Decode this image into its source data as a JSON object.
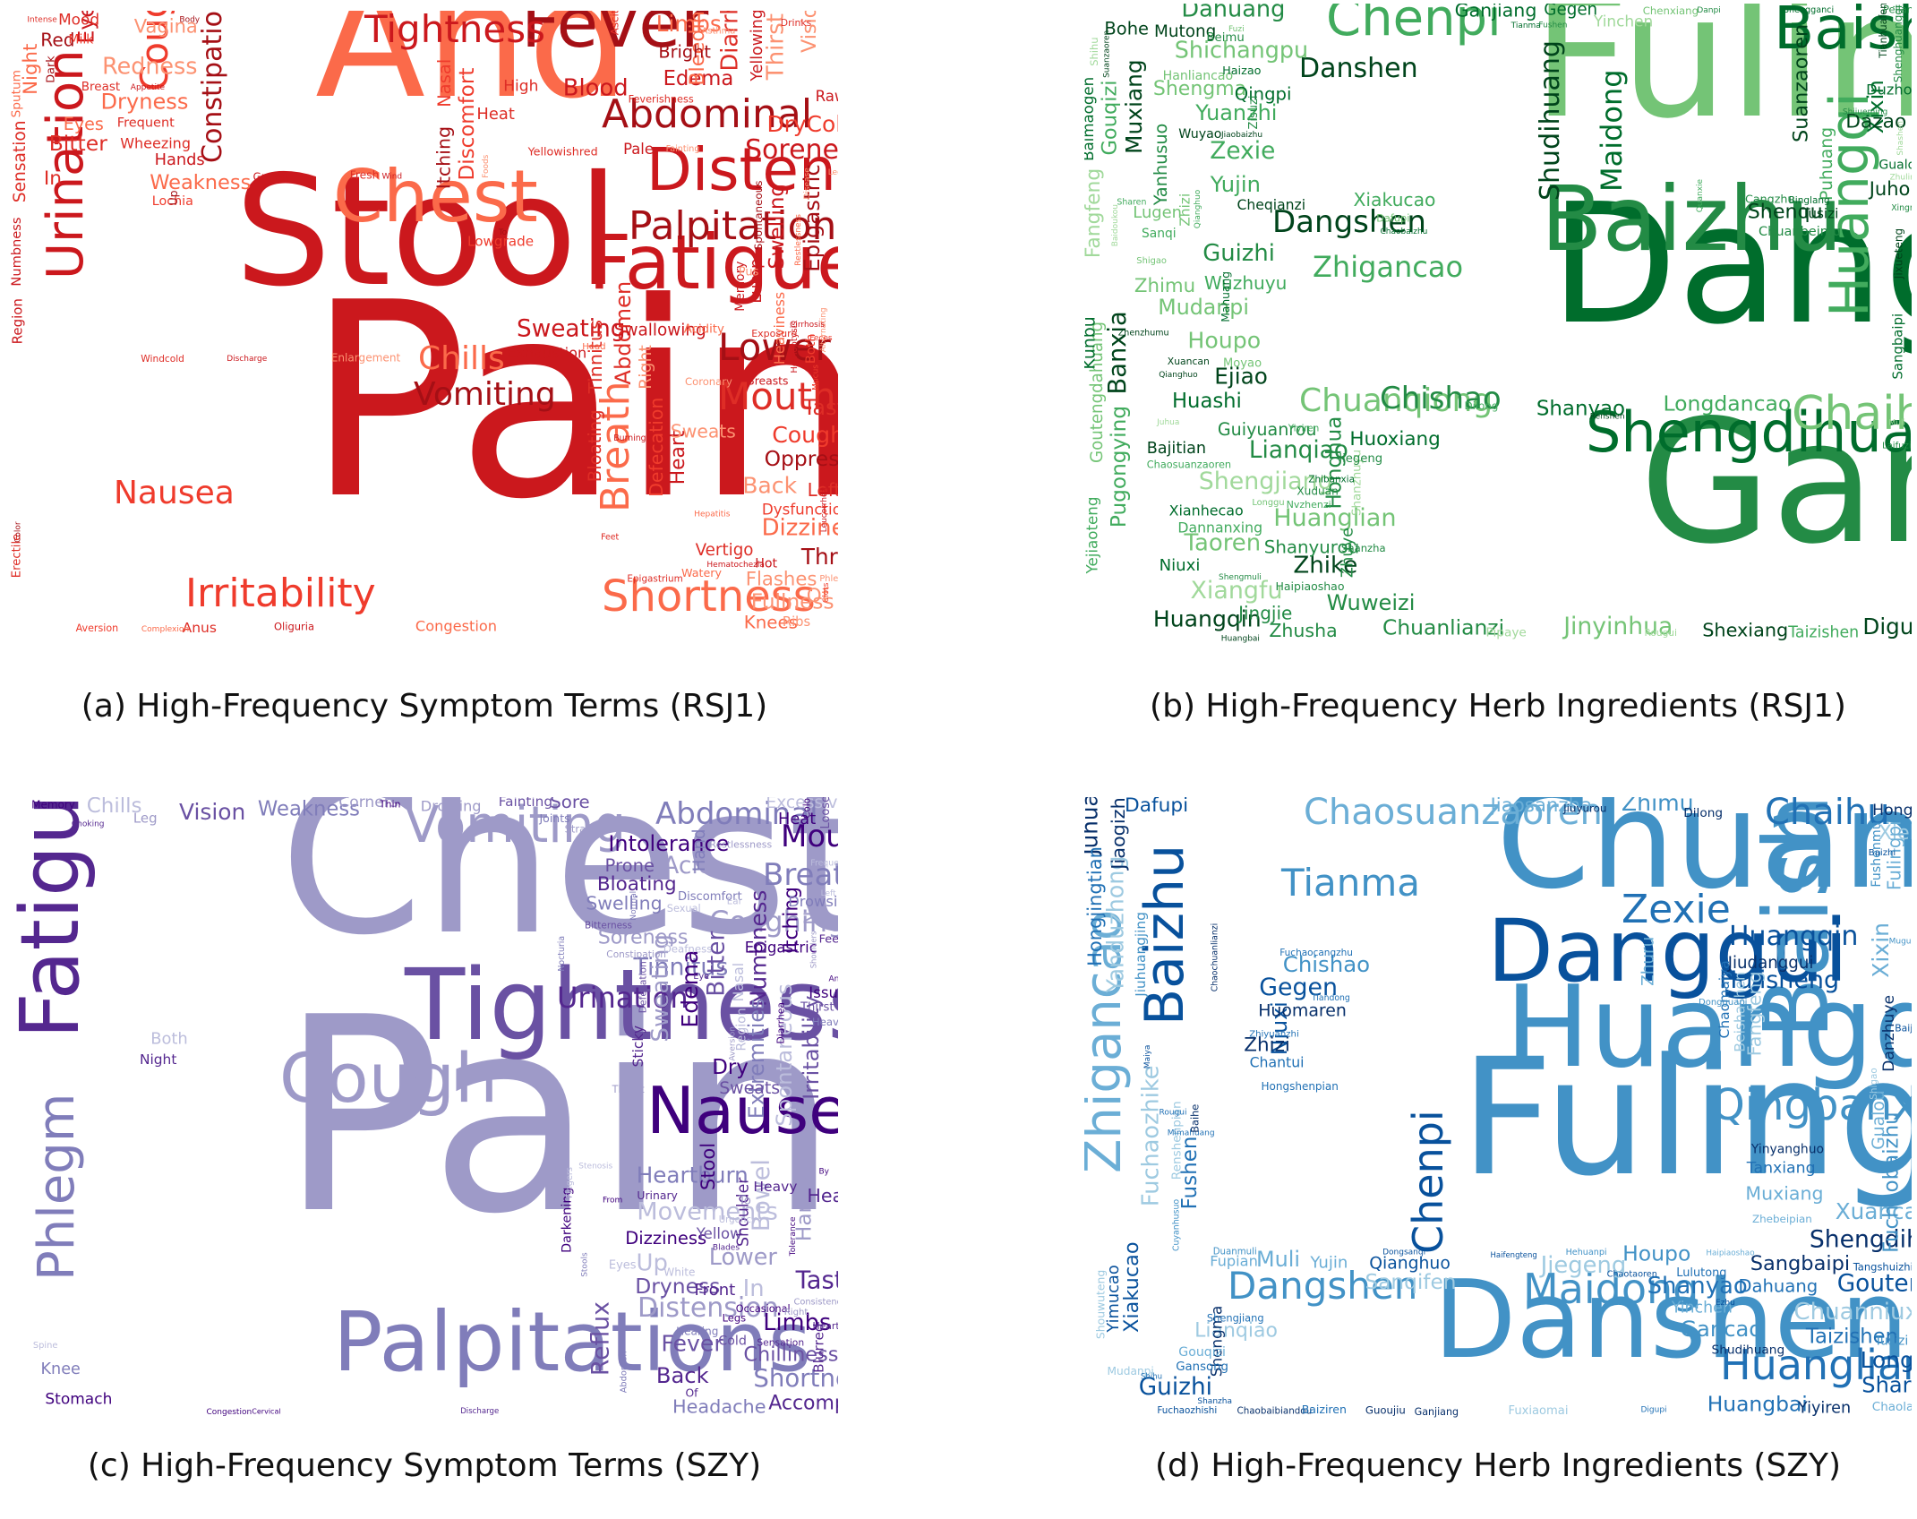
{
  "figure": {
    "panels": [
      {
        "id": "a",
        "caption": "(a) High-Frequency Symptom Terms (RSJ1)",
        "palette": [
          "#a50f15",
          "#cb181d",
          "#de2d26",
          "#ef3b2c",
          "#fb6a4a",
          "#fc9272"
        ],
        "words": [
          "Pain",
          "Stool",
          "And",
          "Fever",
          "Fatigue",
          "Distension",
          "Chest",
          "Urination",
          "Palpitations",
          "Abdominal",
          "Tightness",
          "Cough",
          "Irritability",
          "Shortness",
          "Lower",
          "Mouth",
          "Vomiting",
          "Nausea",
          "Chills",
          "Breath",
          "Constipation",
          "Soreness",
          "Sweating",
          "Thirst",
          "Dizziness",
          "Blood",
          "Diarrhea",
          "Redness",
          "Coughing",
          "Back",
          "DryCold",
          "Throat",
          "Limbs",
          "Epigastric",
          "Abdomen",
          "Dryness",
          "Taste",
          "Eye",
          "Bitter",
          "Oppression",
          "Fullness",
          "Discomfort",
          "Swelling",
          "Edema",
          "Weakness",
          "Bleeding",
          "Vision",
          "Wheezing",
          "Heart",
          "In",
          "Of",
          "Night",
          "Flashes",
          "Vagina",
          "Tinnitus",
          "Itching",
          "Defecation",
          "Sweats",
          "Red",
          "Left",
          "Knees",
          "Bloating",
          "Nasal",
          "Bright",
          "Eyes",
          "Right",
          "Heaviness",
          "Sensation",
          "Swallowing",
          "Vertigo",
          "Lumps",
          "Heat",
          "Hands",
          "Numbness",
          "Yellowing",
          "Lochia",
          "High",
          "Mood",
          "Dysfunction",
          "Raw",
          "Pale",
          "Congestion",
          "Exhaustion",
          "Hemoptysis",
          "Yellowishred",
          "Anus",
          "Breasts",
          "Lowgrade",
          "Region",
          "Spontaneous",
          "Ribs",
          "Frequent",
          "Both",
          "Hot",
          "Milk",
          "Memory",
          "Sputum",
          "Breast",
          "Acidity",
          "Erectile",
          "Pus",
          "Dark",
          "Watery",
          "Up",
          "Fresh",
          "Enlargement",
          "Greasy",
          "Ascites",
          "Coronary",
          "Oliguria",
          "Feverishness",
          "Aversion",
          "Exposure",
          "Drinks",
          "Windcold",
          "Epigastrium",
          "Andness",
          "Head",
          "Asthma",
          "Phlegm",
          "Fainting",
          "Feet",
          "Burning",
          "Halitosis",
          "Hematochezia",
          "Intolerance",
          "Intense",
          "Unconsciousness",
          "Mucus",
          "Restlessness",
          "Alternating",
          "Clots",
          "Leucorrhea",
          "Leg",
          "Appetite",
          "Cirrhosis",
          "Disease",
          "Color",
          "Discharge",
          "Complexion",
          "Hepatitis",
          "Foods",
          "To",
          "Wind",
          "Body",
          "Feces",
          "Expectoration"
        ]
      },
      {
        "id": "b",
        "caption": "(b) High-Frequency Herb Ingredients (RSJ1)",
        "palette": [
          "#00441b",
          "#006d2c",
          "#238b45",
          "#41ab5d",
          "#74c476",
          "#a1d99b"
        ],
        "words": [
          "Gancao",
          "Danggui",
          "Fuling",
          "Baizhu",
          "Shengdihuang",
          "Baishao",
          "Huangqi",
          "Chenpi",
          "Chaihu",
          "Chuanqiong",
          "Chishao",
          "Dangshen",
          "Danshen",
          "Zhigancao",
          "Shudihuang",
          "Maidong",
          "Banxia",
          "Huanglian",
          "Xiangfu",
          "Shengjiang",
          "Jinyinhua",
          "Zexie",
          "Lianqiao",
          "Zhike",
          "Taoren",
          "Guizhi",
          "Dahuang",
          "Shichangpu",
          "Houpo",
          "Huangqin",
          "Muxiang",
          "Ejiao",
          "Digupi",
          "Xixin",
          "Yujin",
          "Wuweizi",
          "Yuanzhi",
          "Mudanpi",
          "Longdancao",
          "Chuanlianzi",
          "Pugongying",
          "Honghua",
          "Shanyao",
          "Huashi",
          "Gouqizi",
          "Suanzaoren",
          "Shenqu",
          "Shengma",
          "Fangfeng",
          "Dazao",
          "Huoxiang",
          "Zhimu",
          "Goutengdahuang",
          "Juhong",
          "Shexiang",
          "Ganjiang",
          "Zhusha",
          "Xiakucao",
          "Wuzhuyu",
          "Jingjie",
          "Shanyurou",
          "Qingpi",
          "Bohe",
          "Yanhusuo",
          "Guiyuanrou",
          "Kunbu",
          "Puhuang",
          "Cheqianzi",
          "Mutong",
          "Gegen",
          "Niuxi",
          "Lugen",
          "Zhuye",
          "Bajitian",
          "Taizishen",
          "Chaosuanzaoren",
          "Hanliancao",
          "Yinchen",
          "Yejiaoteng",
          "Baimaogen",
          "Shanzhuyu",
          "Duzhong",
          "Moyao",
          "Xianhecao",
          "Dannanxing",
          "Zhenzhumu",
          "Zhizi",
          "Tusizi",
          "Shenghuangqi",
          "Sangbaipi",
          "Chenxiang",
          "Chuanbeimu",
          "Peilan",
          "Wuyao",
          "Gualou",
          "Sanqi",
          "Pipaye",
          "Binglang",
          "Beimu",
          "Jiegeng",
          "Zisuzi",
          "Haizao",
          "Cangzhu",
          "Haipiaoshao",
          "Mahuang",
          "Xuduan",
          "Jixueteng",
          "Dilong",
          "Shanzha",
          "Shihu",
          "Dafupi",
          "Tianhuafen",
          "Nvzhenzi",
          "Xuancan",
          "Rougui",
          "Zhibanxia",
          "Yiyiren",
          "Laifuzi",
          "Shigao",
          "Longgu",
          "Shengganci",
          "Sharen",
          "Xingren",
          "Danpi",
          "Jiaobaizhu",
          "Muli",
          "Fushen",
          "Fuzi",
          "Juhua",
          "Shashen",
          "Shijueming",
          "Qianghuo",
          "Chaobaizhu",
          "Huangbai",
          "Baidoukou",
          "Tianma",
          "Quanxie",
          "Zhuling",
          "Renshen",
          "Suanzaoren",
          "Shengmuli",
          "Qianghuo"
        ]
      },
      {
        "id": "c",
        "caption": "(c) High-Frequency Symptom Terms (SZY)",
        "palette": [
          "#3f007d",
          "#54278f",
          "#6a51a3",
          "#807dba",
          "#9e9ac8",
          "#bcbddc"
        ],
        "words": [
          "Pain",
          "Chest",
          "Tightness",
          "Fatigue",
          "Palpitations",
          "Cough",
          "Nausea",
          "Vomiting",
          "Phlegm",
          "Abdominal",
          "Mouth",
          "Breath",
          "Coughing",
          "Urination",
          "Shortness",
          "Distension",
          "Taste",
          "Movements",
          "Bowel",
          "Tinnitus",
          "Reflux",
          "Acid",
          "Bitter",
          "Sweating",
          "Up",
          "In",
          "Limbs",
          "Lower",
          "Fever",
          "Edema",
          "Vision",
          "Numbness",
          "Heartburn",
          "Spontaneous",
          "Back",
          "Irritability",
          "Intolerance",
          "Extremities",
          "Swelling",
          "Dryness",
          "Hands",
          "Chills",
          "Dry",
          "Weakness",
          "Dizziness",
          "Chilliness",
          "Soreness",
          "Accompanied",
          "Itching",
          "Excessive",
          "Bloating",
          "Fainting",
          "Hand",
          "Stool",
          "Headache",
          "Head",
          "No",
          "Darkening",
          "Corners",
          "Stomach",
          "Sore",
          "Prone",
          "Yellow",
          "Drowsiness",
          "Discomfort",
          "Sweats",
          "Consistency",
          "Sticky",
          "Urinary",
          "Blurred",
          "Front",
          "Both",
          "Heat",
          "Knee",
          "Shoulder",
          "Cold",
          "Region",
          "Restlessness",
          "Defecation",
          "Issues",
          "Epigastric",
          "Urgency",
          "Drooling",
          "Loose",
          "Nasal",
          "Heavy",
          "Night",
          "Tolerance",
          "Memory",
          "Leg",
          "Heaving",
          "Strain",
          "Shoulders",
          "Occasional",
          "Cervical",
          "Heart",
          "Sensation",
          "Bitterness",
          "To",
          "Thirst",
          "Eyes",
          "Feet",
          "Fingers",
          "Joints",
          "Of",
          "White",
          "Hearing",
          "Deafness",
          "Discharge",
          "Legs",
          "Sexual",
          "Throat",
          "Thin",
          "Diarrhea",
          "Constipation",
          "Color",
          "Ear",
          "Right",
          "Spine",
          "Abdomen",
          "Eye",
          "Nocturia",
          "Frequent",
          "Normal",
          "From",
          "Expectoration",
          "Left",
          "Choking",
          "Congestion",
          "Stools",
          "And",
          "Blades",
          "Turning",
          "By",
          "Stenosis",
          "Aversion"
        ]
      },
      {
        "id": "d",
        "caption": "(d) High-Frequency Herb Ingredients (SZY)",
        "palette": [
          "#08306b",
          "#08519c",
          "#2171b5",
          "#4292c6",
          "#6baed6",
          "#9ecae1"
        ],
        "words": [
          "Fuling",
          "Chuanqiong",
          "Danshen",
          "Huangqi",
          "Danggui",
          "Baishao",
          "Baizhu",
          "Zhigancao",
          "Chaosuanzaoren",
          "Chaihu",
          "Tianma",
          "Zexie",
          "Huangqin",
          "Qingbanxia",
          "Maidong",
          "Dangshen",
          "Chenpi",
          "Huanglian",
          "Hujisheng",
          "Gegen",
          "Shengdihuang",
          "Gouteng",
          "Guizhi",
          "Chuanniuxi",
          "Shanyao",
          "Jiegeng",
          "Fuchaozhike",
          "Yanduzhong",
          "Zhimu",
          "Xixin",
          "Longgu",
          "Xuancan",
          "Juhua",
          "Chishao",
          "Gancao",
          "Sharen",
          "Muli",
          "Niuxi",
          "Houpo",
          "Huangbai",
          "Sanqifen",
          "Fushen",
          "Fuchaobaizhu",
          "Taizishen",
          "Sangbaipi",
          "Xiakucao",
          "Xiebai",
          "Lianqiao",
          "Qianghuo",
          "Dafupi",
          "Zhizi",
          "Jiaosanzha",
          "Jiudanggui",
          "Hongjingtian",
          "Jiaogizhi",
          "Fangfeng",
          "Muxiang",
          "Honghua",
          "Danzhuye",
          "Fulingpi",
          "Shengma",
          "Dahuang",
          "Chaolaifuzi",
          "Chaobaibiandou",
          "Fuxiaomai",
          "Huomaren",
          "Gualou",
          "Beishashen",
          "Zhuru",
          "Jiuhuangjing",
          "Yujin",
          "Zhebeipian",
          "Yimucao",
          "Yiyiren",
          "Yinchen",
          "Tanxiang",
          "Gouqizi",
          "Yinyanghuo",
          "Shudihuang",
          "Renshenpian",
          "Fuchaozhishi",
          "Fupian",
          "Zhiyuanzhi",
          "Lulutong",
          "Chantui",
          "Chaomaiya",
          "Shouwuteng",
          "Mudanpi",
          "Hongshenpian",
          "Jiuyurou",
          "Guoujiu",
          "Tangshuizhi",
          "Shengjiang",
          "Fushenmu",
          "Tusizi",
          "Zhenzhumu",
          "Dilong",
          "Fuchaocangzhu",
          "Gansong",
          "Duanmuli",
          "Dongguapi",
          "Jiuxiangchong",
          "Chaotaoren",
          "Baiziren",
          "Tiandong",
          "Shichangpu",
          "Mimahuang",
          "Haipiaoshao",
          "Shihu",
          "Haifengteng",
          "Baihe",
          "Ganjiang",
          "Cujineijin",
          "Baiji",
          "Zhishiying",
          "Shigao",
          "Zhuling",
          "Baizhi",
          "Chaomaiya",
          "Zhujiaoqizhou",
          "Hehuanpi",
          "Cuyanhusuo",
          "Chaochuanlianzi",
          "Fabanxia",
          "Mugua",
          "Maiya",
          "Rougui",
          "Digupi",
          "Yanchejianzi",
          "Ezhu",
          "Shanzha",
          "Dongsanqi",
          "Suanzaoren"
        ]
      }
    ]
  }
}
